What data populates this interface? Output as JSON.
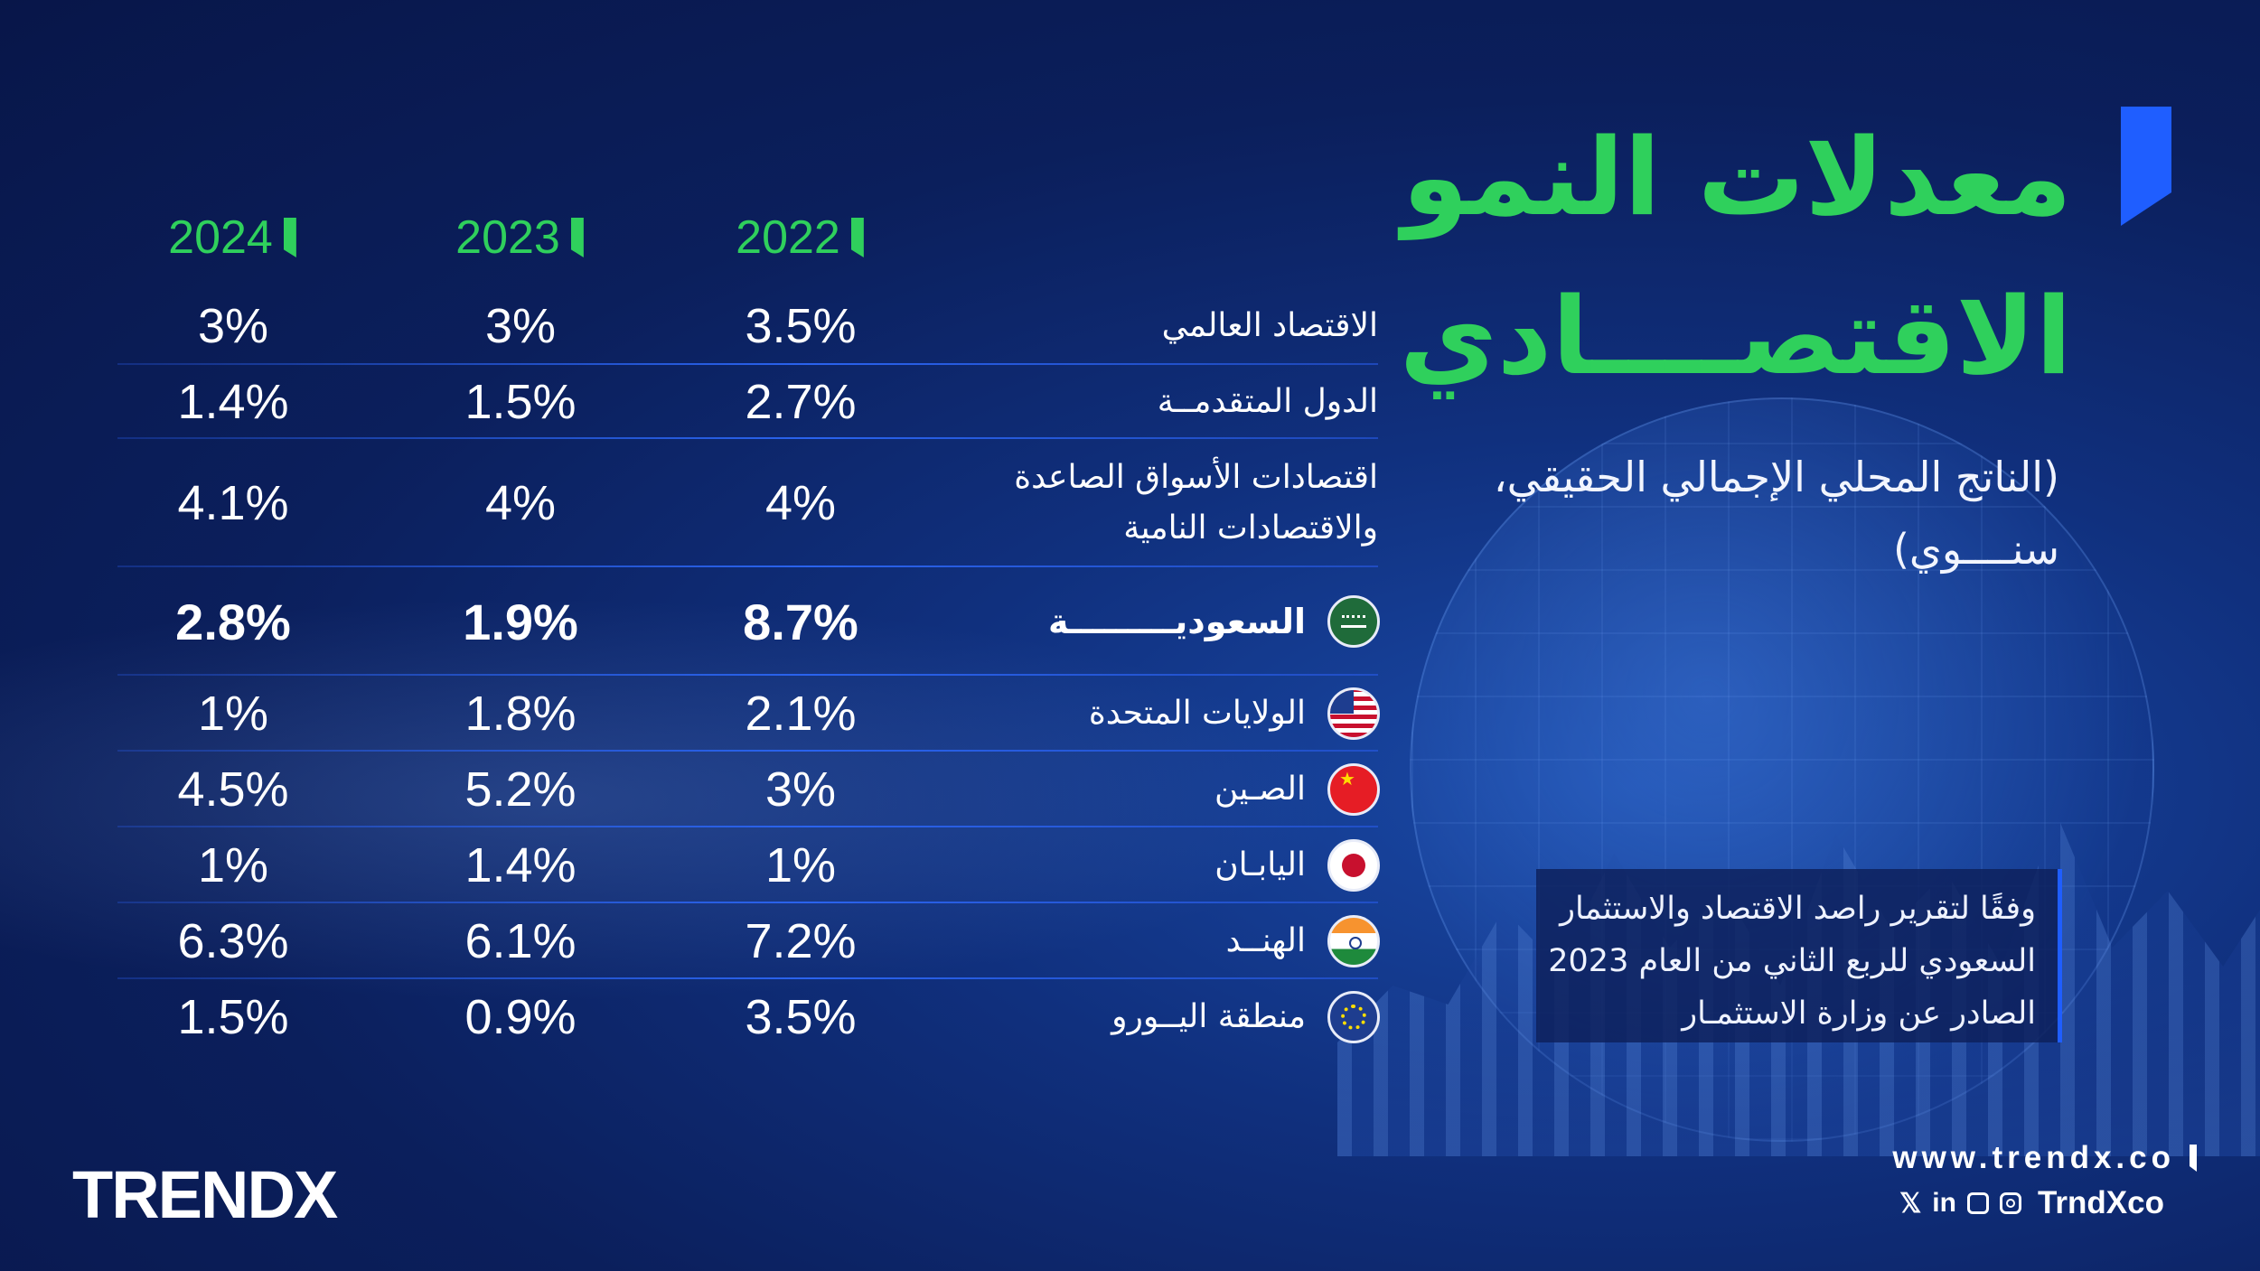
{
  "title": "معدلات النمو الاقتصــــادي",
  "subtitle": "(الناتج المحلي الإجمالي الحقيقي، سنــــوي)",
  "source_note": "وفقًا لتقرير راصد الاقتصاد والاستثمار السعودي للربع الثاني من العام 2023 الصادر عن وزارة الاستثمـار",
  "colors": {
    "accent_green": "#2fd05c",
    "accent_blue": "#1f5eff",
    "background": "#0b1f5c"
  },
  "chart_data": {
    "type": "table",
    "title": "معدلات النمو الاقتصــــادي",
    "subtitle": "(الناتج المحلي الإجمالي الحقيقي، سنــــوي)",
    "columns": [
      "2022",
      "2023",
      "2024"
    ],
    "rows": [
      {
        "label": "الاقتصاد العالمي",
        "flag": "",
        "values": [
          "3.5%",
          "3%",
          "3%"
        ]
      },
      {
        "label": "الدول المتقدمــة",
        "flag": "",
        "values": [
          "2.7%",
          "1.5%",
          "1.4%"
        ]
      },
      {
        "label": "اقتصادات الأسواق الصاعدة والاقتصادات النامية",
        "flag": "",
        "values": [
          "4%",
          "4%",
          "4.1%"
        ]
      },
      {
        "label": "السعوديـــــــــة",
        "flag": "saudi-flag-icon",
        "values": [
          "8.7%",
          "1.9%",
          "2.8%"
        ]
      },
      {
        "label": "الولايات المتحدة",
        "flag": "usa-flag-icon",
        "values": [
          "2.1%",
          "1.8%",
          "1%"
        ]
      },
      {
        "label": "الصـين",
        "flag": "china-flag-icon",
        "values": [
          "3%",
          "5.2%",
          "4.5%"
        ]
      },
      {
        "label": "اليابـان",
        "flag": "japan-flag-icon",
        "values": [
          "1%",
          "1.4%",
          "1%"
        ]
      },
      {
        "label": "الهنــد",
        "flag": "india-flag-icon",
        "values": [
          "7.2%",
          "6.1%",
          "6.3%"
        ]
      },
      {
        "label": "منطقة اليــورو",
        "flag": "eu-flag-icon",
        "values": [
          "3.5%",
          "0.9%",
          "1.5%"
        ]
      }
    ]
  },
  "footer": {
    "logo": "TRENDX",
    "website": "www.trendx.co",
    "social_handle": "TrndXco",
    "x_icon": "𝕏",
    "linkedin_icon": "in"
  }
}
